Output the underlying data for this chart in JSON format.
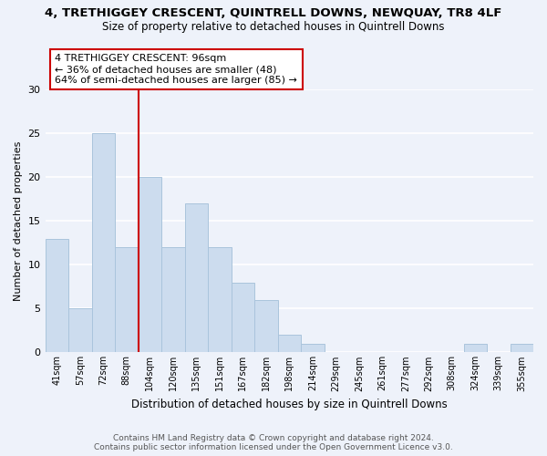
{
  "title": "4, TRETHIGGEY CRESCENT, QUINTRELL DOWNS, NEWQUAY, TR8 4LF",
  "subtitle": "Size of property relative to detached houses in Quintrell Downs",
  "xlabel": "Distribution of detached houses by size in Quintrell Downs",
  "ylabel": "Number of detached properties",
  "bin_labels": [
    "41sqm",
    "57sqm",
    "72sqm",
    "88sqm",
    "104sqm",
    "120sqm",
    "135sqm",
    "151sqm",
    "167sqm",
    "182sqm",
    "198sqm",
    "214sqm",
    "229sqm",
    "245sqm",
    "261sqm",
    "277sqm",
    "292sqm",
    "308sqm",
    "324sqm",
    "339sqm",
    "355sqm"
  ],
  "bar_heights": [
    13,
    5,
    25,
    12,
    20,
    12,
    17,
    12,
    8,
    6,
    2,
    1,
    0,
    0,
    0,
    0,
    0,
    0,
    1,
    0,
    1
  ],
  "bar_color": "#ccdcee",
  "bar_edge_color": "#aac4dc",
  "vline_x_index": 3.5,
  "vline_color": "#cc0000",
  "annotation_line1": "4 TRETHIGGEY CRESCENT: 96sqm",
  "annotation_line2": "← 36% of detached houses are smaller (48)",
  "annotation_line3": "64% of semi-detached houses are larger (85) →",
  "annotation_box_color": "#ffffff",
  "annotation_box_edge": "#cc0000",
  "ylim": [
    0,
    30
  ],
  "yticks": [
    0,
    5,
    10,
    15,
    20,
    25,
    30
  ],
  "footer_line1": "Contains HM Land Registry data © Crown copyright and database right 2024.",
  "footer_line2": "Contains public sector information licensed under the Open Government Licence v3.0.",
  "bg_color": "#eef2fa",
  "grid_color": "#ffffff"
}
